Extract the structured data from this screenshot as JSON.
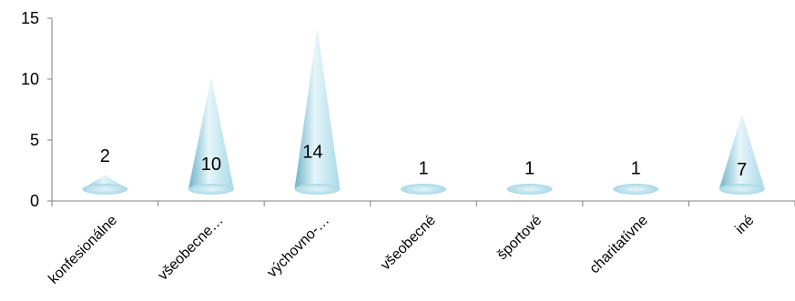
{
  "chart_data": {
    "type": "bar",
    "bar_shape": "cone",
    "categories": [
      "konfesionálne",
      "všeobecne…",
      "výchovno-…",
      "všeobecné",
      "športové",
      "charitatívne",
      "iné"
    ],
    "values": [
      2,
      10,
      14,
      1,
      1,
      1,
      7
    ],
    "data_labels": [
      "2",
      "10",
      "14",
      "1",
      "1",
      "1",
      "7"
    ],
    "y_ticks": [
      "0",
      "5",
      "10",
      "15"
    ],
    "ylim": [
      0,
      15
    ],
    "grid": false,
    "legend": "none",
    "title": "",
    "xlabel": "",
    "ylabel": "",
    "colors": {
      "cone_light": "#e6f6fa",
      "cone_mid": "#a9d8e6",
      "cone_dark": "#6fb3c8",
      "axis": "#808080"
    }
  }
}
